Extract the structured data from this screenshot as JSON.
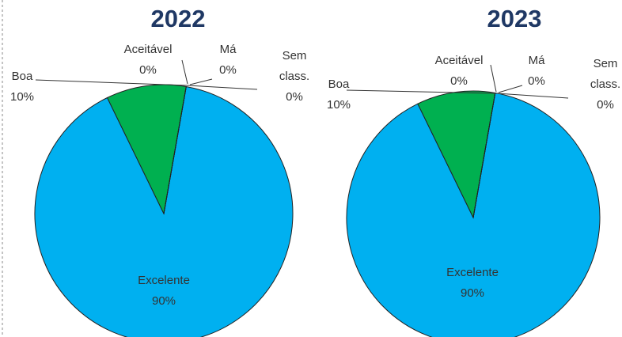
{
  "chart_data": [
    {
      "type": "pie",
      "title": "2022",
      "categories": [
        "Excelente",
        "Boa",
        "Aceitável",
        "Má",
        "Sem class."
      ],
      "values": [
        90,
        10,
        0,
        0,
        0
      ],
      "value_labels": [
        "90%",
        "10%",
        "0%",
        "0%",
        "0%"
      ],
      "colors": [
        "#00b0f0",
        "#00b050",
        "#ffc000",
        "#ff0000",
        "#a6a6a6"
      ]
    },
    {
      "type": "pie",
      "title": "2023",
      "categories": [
        "Excelente",
        "Boa",
        "Aceitável",
        "Má",
        "Sem class."
      ],
      "values": [
        90,
        10,
        0,
        0,
        0
      ],
      "value_labels": [
        "90%",
        "10%",
        "0%",
        "0%",
        "0%"
      ],
      "colors": [
        "#00b0f0",
        "#00b050",
        "#ffc000",
        "#ff0000",
        "#a6a6a6"
      ]
    }
  ]
}
